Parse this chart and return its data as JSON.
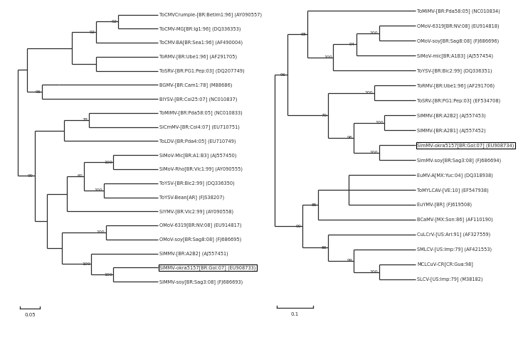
{
  "background_color": "#ffffff",
  "tree_color": "#2a2a2a",
  "text_color": "#2a2a2a",
  "label_fontsize": 4.8,
  "bootstrap_fontsize": 4.5,
  "treeA": {
    "leaves": [
      "ToCMVCrumple-[BR:Betim1:96] (AY090557)",
      "ToCMV-MG[BR:Ig1:96] (DQ336353)",
      "ToCMV-BA[BR:Sea1:96] (AF490004)",
      "ToRMV-[BR:Ube1:96] (AF291705)",
      "ToSRV-[BR:PG1:Pep:03] (DQ207749)",
      "BGMV-[BR:Cam1:78] (M88686)",
      "BlYSV-[BR:Coi25:07] (NC010837)",
      "ToMiMV-[BR:Pda58:05] (NC010833)",
      "SiCmMV-[BR:Coi4:07] (EU710751)",
      "ToLDV-[BR:Pda4:05] (EU710749)",
      "SiMoV-Mic[BR:A1:B3] (AJ557450)",
      "SiMoV-Rho[BR:Vic1:99] (AY090555)",
      "ToYSV-[BR:Bic2:99] (DQ336350)",
      "ToYSV-Bean[AR] (FJS38207)",
      "SiYMV-[BR:Vic2:99] (AY090558)",
      "OMoV-6319[BR:NV:08] (EU914817)",
      "OMoV-soy[BR:Sag8:08] (FJ686695)",
      "SiMMV-[BR:A2B2] (AJ557451)",
      "SiMMV-okra5157[BR:Goi:07] (EU908733)",
      "SiMMV-soy[BR:Sag3:08] (FJ686693)"
    ],
    "boxed_leaf": "SiMMV-okra5157[BR:Goi:07] (EU908733)",
    "scale_label": "0.05"
  },
  "treeB": {
    "leaves": [
      "ToMiMV-[BR:Pda58:05] (NC010834)",
      "OMoV-6319[BR:NV:08] (EU914818)",
      "OMoV-soy[BR:Sag8:08] (FJ686696)",
      "SiMoV-mic[BR:A1B3] (AJ557454)",
      "ToYSV-[BR:Bic2:99] (DQ336351)",
      "ToRMV-[BR:Ube1:96] (AF291706)",
      "ToSRV-[BR:PG1:Pep:03] (EF534708)",
      "SiMMV-[BR:A2B2] (AJ557453)",
      "SiMMV-[BR:A2B1] (AJ557452)",
      "SimMV-okra5157[BR:Goi:07] (EU908734)",
      "SimMV-soy[BR:Sag3:08] (FJ686694)",
      "EuMV-A[MX:Yuc:04] (DQ318938)",
      "ToMYLCAV-[VE:10] (EF547938)",
      "EuYMV-[BR] (FJ619508)",
      "BCaMV-[MX:Son:86] (AF110190)",
      "CuLCrV-[US:Ari:91] (AF327559)",
      "SMLCV-[US:Imp:79] (AF421553)",
      "MCLCuV-CR[CR:Gua:98]",
      "SLCV-[US:Imp:79] (M38182)"
    ],
    "boxed_leaf": "SimMV-okra5157[BR:Goi:07] (EU908734)",
    "scale_label": "0.1"
  }
}
